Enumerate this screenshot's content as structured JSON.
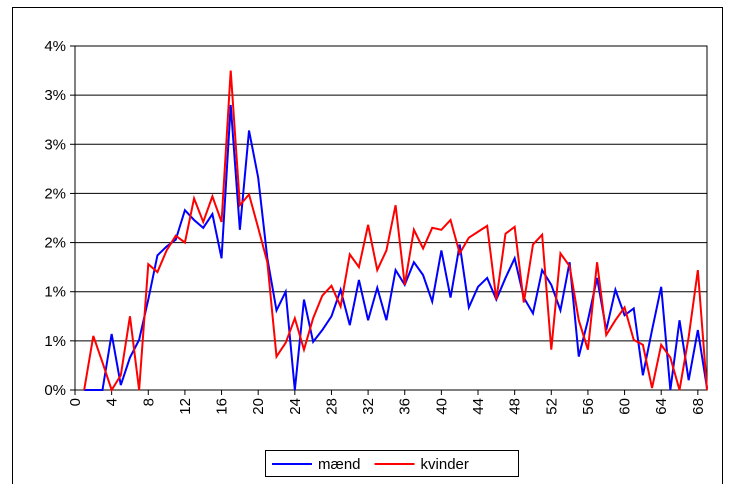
{
  "chart_data": {
    "type": "line",
    "x": [
      0,
      1,
      2,
      3,
      4,
      5,
      6,
      7,
      8,
      9,
      10,
      11,
      12,
      13,
      14,
      15,
      16,
      17,
      18,
      19,
      20,
      21,
      22,
      23,
      24,
      25,
      26,
      27,
      28,
      29,
      30,
      31,
      32,
      33,
      34,
      35,
      36,
      37,
      38,
      39,
      40,
      41,
      42,
      43,
      44,
      45,
      46,
      47,
      48,
      49,
      50,
      51,
      52,
      53,
      54,
      55,
      56,
      57,
      58,
      59,
      60,
      61,
      62,
      63,
      64,
      65,
      66,
      67,
      68,
      69
    ],
    "series": [
      {
        "name": "mænd",
        "color": "#0000ff",
        "values": [
          null,
          0,
          0,
          0,
          0.57,
          0.05,
          0.33,
          0.51,
          0.92,
          1.37,
          1.46,
          1.53,
          1.83,
          1.73,
          1.65,
          1.79,
          1.34,
          2.9,
          1.63,
          2.64,
          2.16,
          1.34,
          0.81,
          1.0,
          0,
          0.92,
          0.49,
          0.61,
          0.75,
          1.02,
          0.66,
          1.12,
          0.71,
          1.04,
          0.71,
          1.22,
          1.07,
          1.3,
          1.17,
          0.9,
          1.42,
          0.94,
          1.48,
          0.84,
          1.05,
          1.14,
          0.92,
          1.14,
          1.34,
          0.94,
          0.78,
          1.22,
          1.07,
          0.81,
          1.3,
          0.34,
          0.71,
          1.14,
          0.61,
          1.02,
          0.76,
          0.83,
          0.15,
          0.61,
          1.05,
          0,
          0.71,
          0.1,
          0.61,
          0.02
        ]
      },
      {
        "name": "kvinder",
        "color": "#ff0000",
        "values": [
          null,
          0,
          0.55,
          0.28,
          0,
          0.15,
          0.75,
          0,
          1.28,
          1.2,
          1.42,
          1.57,
          1.5,
          1.95,
          1.71,
          1.97,
          1.71,
          3.25,
          1.88,
          1.99,
          1.65,
          1.3,
          0.34,
          0.48,
          0.73,
          0.41,
          0.73,
          0.96,
          1.06,
          0.85,
          1.38,
          1.25,
          1.68,
          1.22,
          1.42,
          1.88,
          1.07,
          1.63,
          1.44,
          1.65,
          1.63,
          1.73,
          1.39,
          1.55,
          1.61,
          1.67,
          0.92,
          1.59,
          1.66,
          0.89,
          1.48,
          1.58,
          0.41,
          1.39,
          1.26,
          0.71,
          0.41,
          1.3,
          0.56,
          0.71,
          0.84,
          0.51,
          0.46,
          0.02,
          0.46,
          0.33,
          0,
          0.54,
          1.22,
          0
        ]
      }
    ],
    "xlim": [
      0,
      69
    ],
    "xticks": [
      0,
      4,
      8,
      12,
      16,
      20,
      24,
      28,
      32,
      36,
      40,
      44,
      48,
      52,
      56,
      60,
      64,
      68
    ],
    "ylim": [
      0,
      3.5
    ],
    "yticks": [
      {
        "value": 0,
        "label": "0%"
      },
      {
        "value": 0.5,
        "label": "1%"
      },
      {
        "value": 1,
        "label": "1%"
      },
      {
        "value": 1.5,
        "label": "2%"
      },
      {
        "value": 2,
        "label": "2%"
      },
      {
        "value": 2.5,
        "label": "3%"
      },
      {
        "value": 3,
        "label": "3%"
      },
      {
        "value": 3.5,
        "label": "4%"
      }
    ],
    "grid": true,
    "legend": "bottom"
  }
}
